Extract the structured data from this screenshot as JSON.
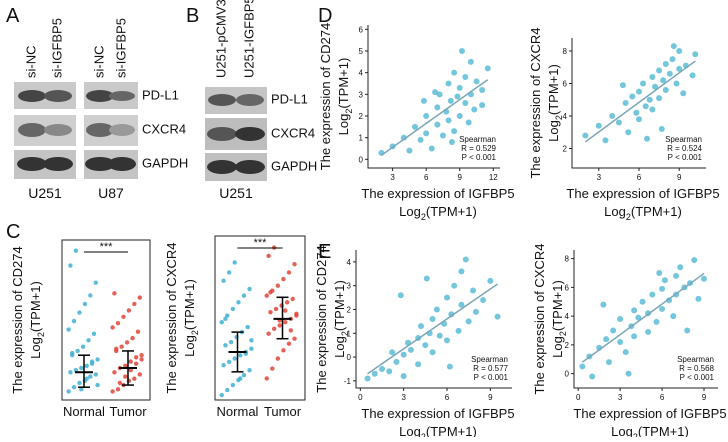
{
  "panels": [
    "A",
    "B",
    "C",
    "D",
    "E"
  ],
  "blots": {
    "A": {
      "lanes": [
        "si-NC",
        "si-IGFBP5",
        "si-NC",
        "si-IGFBP5"
      ],
      "proteins": [
        "PD-L1",
        "CXCR4",
        "GAPDH"
      ],
      "cell_lines": [
        "U251",
        "U87"
      ]
    },
    "B": {
      "lanes": [
        "U251-pCMV3",
        "U251-IGFBP5"
      ],
      "proteins": [
        "PD-L1",
        "CXCR4",
        "GAPDH"
      ],
      "cell_lines": [
        "U251"
      ]
    }
  },
  "chart_data": [
    {
      "type": "strip",
      "ylabel": [
        "The expression of CD274",
        [
          "Log",
          "2",
          "(TPM+1)"
        ]
      ],
      "annotation": "***",
      "ylim": [
        -0.3,
        7.2
      ],
      "categories": [
        "Normal",
        "Tumor"
      ],
      "series": [
        {
          "name": "Normal",
          "color": "#3fb0d2",
          "values": [
            0.1,
            0.3,
            0.5,
            0.6,
            0.8,
            0.9,
            1.0,
            1.1,
            1.2,
            1.3,
            1.5,
            1.6,
            1.8,
            2.0,
            2.2,
            2.5,
            2.8,
            3.0,
            3.4,
            3.8,
            4.2,
            4.6,
            5.2,
            6.0,
            6.7,
            0.2,
            0.7,
            1.4,
            0.4,
            1.9
          ],
          "center": 1.0,
          "low": 0.3,
          "high": 1.8
        },
        {
          "name": "Tumor",
          "color": "#e0453a",
          "values": [
            0.1,
            0.2,
            0.4,
            0.6,
            0.7,
            0.9,
            1.0,
            1.2,
            1.3,
            1.5,
            1.7,
            1.8,
            2.0,
            2.2,
            2.4,
            2.6,
            2.9,
            3.1,
            3.3,
            3.6,
            3.9,
            4.2,
            4.5,
            4.7,
            0.5,
            0.8,
            1.1,
            1.4,
            1.6,
            2.1
          ],
          "center": 1.2,
          "low": 0.4,
          "high": 2.0
        }
      ]
    },
    {
      "type": "strip",
      "ylabel": [
        "The expression of CXCR4",
        [
          "Log",
          "2",
          "(TPM+1)"
        ]
      ],
      "annotation": "***",
      "ylim": [
        -0.3,
        9.6
      ],
      "categories": [
        "Normal",
        "Tumor"
      ],
      "series": [
        {
          "name": "Normal",
          "color": "#3fb0d2",
          "values": [
            0.0,
            0.3,
            0.6,
            0.9,
            1.2,
            1.5,
            1.8,
            2.0,
            2.2,
            2.4,
            2.6,
            2.8,
            3.0,
            3.2,
            3.5,
            3.8,
            4.1,
            4.4,
            4.8,
            5.2,
            5.6,
            6.0,
            6.4,
            6.9,
            7.4,
            8.0,
            1.0,
            2.5,
            3.3,
            4.6
          ],
          "center": 2.6,
          "low": 1.4,
          "high": 3.8
        },
        {
          "name": "Tumor",
          "color": "#e0453a",
          "values": [
            1.0,
            1.6,
            2.2,
            2.7,
            3.1,
            3.4,
            3.7,
            4.0,
            4.2,
            4.4,
            4.6,
            4.8,
            5.0,
            5.2,
            5.4,
            5.6,
            5.8,
            6.0,
            6.3,
            6.6,
            7.0,
            7.4,
            7.9,
            8.4,
            8.9,
            4.5,
            5.1,
            3.9,
            4.9,
            6.2
          ],
          "center": 4.6,
          "low": 3.4,
          "high": 5.9
        }
      ]
    },
    {
      "type": "scatter",
      "ylabel": [
        "The expression of CD274",
        [
          "Log",
          "2",
          "(TPM+1)"
        ]
      ],
      "xlabel": [
        "The expression of IGFBP5",
        [
          "Log",
          "2",
          "(TPM+1)"
        ]
      ],
      "stats": [
        "Spearman",
        "R = 0.529",
        "P < 0.001"
      ],
      "color": "#5bbcd6",
      "xlim": [
        0.8,
        12.6
      ],
      "ylim": [
        -0.4,
        6.2
      ],
      "xticks": [
        3,
        6,
        9,
        12
      ],
      "yticks": [
        0,
        1,
        2,
        3,
        4,
        5,
        6
      ],
      "x": [
        2,
        3,
        4,
        4.5,
        5,
        5.5,
        6,
        6,
        6.5,
        7,
        7,
        7.2,
        7.5,
        7.8,
        8,
        8,
        8.2,
        8.5,
        8.5,
        8.8,
        9,
        9,
        9.2,
        9.5,
        9.5,
        9.8,
        10,
        10,
        10.3,
        10.5,
        11,
        11,
        11.5,
        6.8,
        5.8,
        8.3
      ],
      "y": [
        0.3,
        0.6,
        1.0,
        0.4,
        1.5,
        0.9,
        2.0,
        1.2,
        0.5,
        2.4,
        1.6,
        3.0,
        1.1,
        2.2,
        3.5,
        1.8,
        2.7,
        4.0,
        1.3,
        2.9,
        3.3,
        2.0,
        5.0,
        2.6,
        3.8,
        1.7,
        4.5,
        3.0,
        2.3,
        3.6,
        3.2,
        2.5,
        4.2,
        3.1,
        2.7,
        0.8
      ]
    },
    {
      "type": "scatter",
      "ylabel": [
        "The expression of CXCR4",
        [
          "Log",
          "2",
          "(TPM+1)"
        ]
      ],
      "xlabel": [
        "The expression of IGFBP5",
        [
          "Log",
          "2",
          "(TPM+1)"
        ]
      ],
      "stats": [
        "Spearman",
        "R = 0.524",
        "P < 0.001"
      ],
      "color": "#5bbcd6",
      "xlim": [
        1,
        11
      ],
      "ylim": [
        0.8,
        8.8
      ],
      "xticks": [
        3,
        6,
        9
      ],
      "yticks": [
        2,
        4,
        6,
        8
      ],
      "x": [
        2,
        3,
        3.5,
        4,
        4.5,
        5,
        5.2,
        5.5,
        5.8,
        6,
        6,
        6.3,
        6.5,
        6.8,
        7,
        7,
        7.2,
        7.5,
        7.5,
        7.8,
        8,
        8,
        8.3,
        8.5,
        8.8,
        9,
        9,
        9.3,
        9.5,
        10,
        10.2,
        6.6,
        7.7,
        4.8,
        8.6
      ],
      "y": [
        2.8,
        3.4,
        2.5,
        4.0,
        3.6,
        4.8,
        3.0,
        5.2,
        4.2,
        5.5,
        3.8,
        6.0,
        4.6,
        5.0,
        6.4,
        4.4,
        5.8,
        6.8,
        5.1,
        6.2,
        7.2,
        5.6,
        6.6,
        7.5,
        6.0,
        8.0,
        6.9,
        5.4,
        7.1,
        6.5,
        7.8,
        2.6,
        3.2,
        5.9,
        8.3
      ]
    },
    {
      "type": "scatter",
      "ylabel": [
        "The expression of CD274",
        [
          "Log",
          "2",
          "(TPM+1)"
        ]
      ],
      "xlabel": [
        "The expression of IGFBP5",
        [
          "Log",
          "2",
          "(TPM+1)"
        ]
      ],
      "stats": [
        "Spearman",
        "R = 0.577",
        "P < 0.001"
      ],
      "color": "#5bbcd6",
      "xlim": [
        -0.3,
        10.5
      ],
      "ylim": [
        -1.3,
        4.5
      ],
      "xticks": [
        0,
        3,
        6,
        9
      ],
      "yticks": [
        -1,
        0,
        1,
        2,
        3,
        4
      ],
      "x": [
        0.5,
        1,
        1.5,
        2,
        2.2,
        2.5,
        3,
        3,
        3.3,
        3.5,
        4,
        4,
        4.2,
        4.5,
        4.8,
        5,
        5,
        5.3,
        5.5,
        5.8,
        6,
        6,
        6.3,
        6.5,
        6.8,
        7,
        7,
        7.5,
        7.8,
        8,
        8.5,
        9,
        9.5,
        2.8,
        4.6,
        6.2,
        7.3
      ],
      "y": [
        -0.9,
        -0.7,
        -0.5,
        -0.6,
        0.2,
        -0.2,
        0.1,
        -0.8,
        0.6,
        0.3,
        0.8,
        -0.3,
        1.3,
        0.5,
        1.0,
        1.6,
        0.2,
        2.0,
        0.9,
        1.4,
        2.5,
        0.7,
        1.8,
        3.0,
        1.1,
        2.2,
        3.6,
        1.5,
        2.8,
        1.9,
        2.4,
        3.2,
        1.7,
        2.6,
        3.3,
        -0.4,
        4.1
      ]
    },
    {
      "type": "scatter",
      "ylabel": [
        "The expression of CXCR4",
        [
          "Log",
          "2",
          "(TPM+1)"
        ]
      ],
      "xlabel": [
        "The expression of IGFBP5",
        [
          "Log",
          "2",
          "(TPM+1)"
        ]
      ],
      "stats": [
        "Spearman",
        "R = 0.568",
        "P < 0.001"
      ],
      "color": "#5bbcd6",
      "xlim": [
        -0.3,
        10
      ],
      "ylim": [
        -1,
        8.6
      ],
      "xticks": [
        0,
        3,
        6,
        9
      ],
      "yticks": [
        0,
        2,
        4,
        6,
        8
      ],
      "x": [
        0.3,
        0.8,
        1,
        1.5,
        2,
        2.2,
        2.5,
        3,
        3,
        3.4,
        3.8,
        4,
        4,
        4.3,
        4.6,
        5,
        5,
        5.3,
        5.6,
        6,
        6,
        6.2,
        6.5,
        6.8,
        7,
        7,
        7.3,
        7.6,
        8,
        8.3,
        8.6,
        9,
        1.8,
        3.6,
        5.8,
        7.8
      ],
      "y": [
        0.5,
        1.2,
        -0.2,
        1.8,
        2.4,
        0.8,
        3.0,
        2.2,
        3.8,
        1.5,
        3.3,
        4.4,
        2.6,
        3.9,
        5.0,
        4.2,
        2.9,
        5.5,
        3.6,
        5.9,
        4.5,
        6.5,
        5.1,
        4.0,
        6.8,
        5.5,
        7.4,
        6.0,
        6.3,
        7.9,
        5.2,
        6.6,
        4.8,
        0.0,
        7.0,
        3.0
      ]
    }
  ]
}
